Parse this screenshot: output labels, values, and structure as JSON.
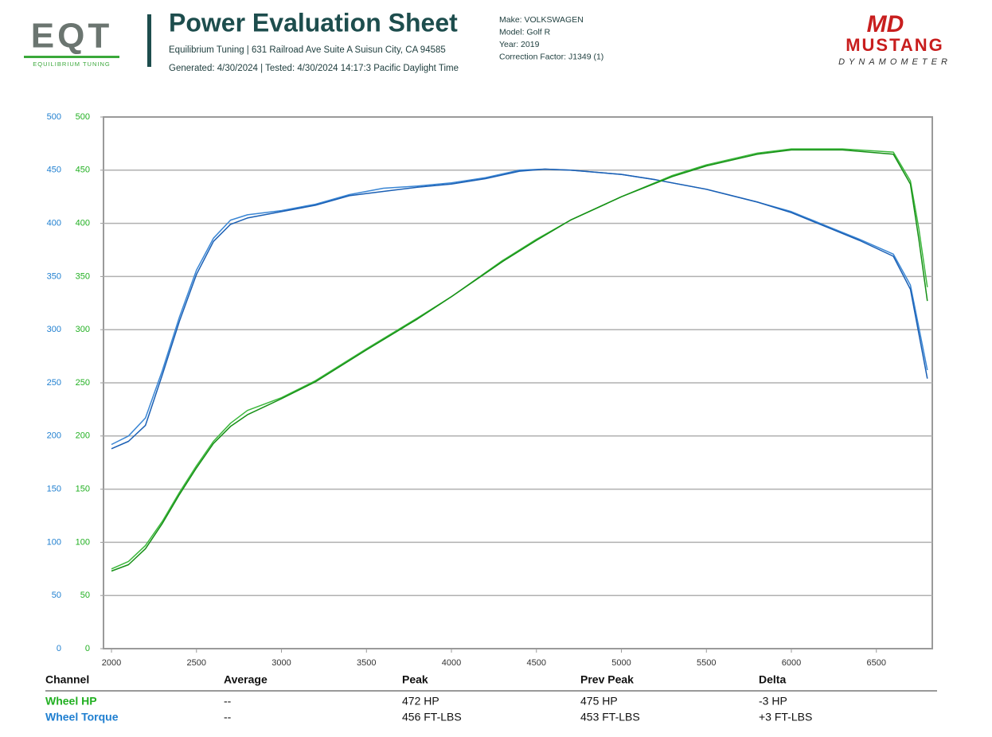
{
  "header": {
    "logo_left": "EQT",
    "logo_left_caption": "EQUILIBRIUM TUNING",
    "title": "Power Evaluation Sheet",
    "subtitle": "Equilibrium Tuning | 631 Railroad Ave Suite A Suisun City, CA 94585",
    "generated": "Generated: 4/30/2024 | Tested: 4/30/2024 14:17:3 Pacific Daylight Time",
    "details": [
      "Make: VOLKSWAGEN",
      "Model: Golf R",
      "Year: 2019",
      "Correction Factor: J1349 (1)"
    ],
    "logo_right_mark": "MD",
    "logo_right": "MUSTANG",
    "logo_right_caption": "DYNAMOMETER"
  },
  "chart_data": {
    "type": "line",
    "xlim": [
      1953,
      6829
    ],
    "xticks": [
      2000,
      2500,
      3000,
      3500,
      4000,
      4500,
      5000,
      5500,
      6000,
      6500
    ],
    "ylim": [
      0,
      500
    ],
    "yticks": [
      0,
      50,
      100,
      150,
      200,
      250,
      300,
      350,
      400,
      450,
      500
    ],
    "y2lim": [
      0,
      500
    ],
    "y2ticks": [
      0,
      50,
      100,
      150,
      200,
      250,
      300,
      350,
      400,
      450,
      500
    ],
    "ycolor": "#1f7fd0",
    "y2color": "#22b022",
    "grid": true,
    "series": [
      {
        "color": "#3a86d4",
        "x": [
          2000,
          2100,
          2200,
          2300,
          2400,
          2500,
          2600,
          2700,
          2800,
          3000,
          3200,
          3400,
          3600,
          3800,
          4000,
          4200,
          4400,
          4550,
          4700,
          5000,
          5200,
          5500,
          5800,
          6000,
          6200,
          6400,
          6600,
          6700,
          6800
        ],
        "values": [
          192,
          200,
          217,
          262,
          312,
          356,
          386,
          403,
          408,
          412,
          418,
          427,
          433,
          435,
          438,
          443,
          450,
          451,
          450,
          446,
          441,
          432,
          420,
          411,
          398,
          385,
          371,
          342,
          262
        ]
      },
      {
        "color": "#1a5fb4",
        "x": [
          2000,
          2100,
          2200,
          2300,
          2400,
          2500,
          2600,
          2700,
          2800,
          3000,
          3200,
          3400,
          3600,
          3800,
          4000,
          4200,
          4400,
          4550,
          4700,
          5000,
          5200,
          5500,
          5800,
          6000,
          6200,
          6400,
          6600,
          6700,
          6800
        ],
        "values": [
          188,
          195,
          210,
          258,
          308,
          352,
          383,
          399,
          405,
          411,
          417,
          426,
          430,
          434,
          437,
          442,
          449,
          451,
          450,
          446,
          441,
          432,
          420,
          410,
          397,
          384,
          369,
          338,
          254
        ]
      },
      {
        "color": "#3cb83c",
        "axis": "y2",
        "x": [
          2000,
          2100,
          2200,
          2300,
          2400,
          2500,
          2600,
          2700,
          2800,
          3000,
          3200,
          3500,
          3800,
          4000,
          4300,
          4500,
          4700,
          5000,
          5300,
          5500,
          5800,
          6000,
          6300,
          6600,
          6700,
          6750,
          6800
        ],
        "values": [
          75,
          82,
          97,
          120,
          147,
          172,
          195,
          212,
          224,
          236,
          252,
          282,
          311,
          331,
          365,
          385,
          403,
          425,
          445,
          455,
          466,
          470,
          470,
          467,
          440,
          395,
          340
        ]
      },
      {
        "color": "#169016",
        "axis": "y2",
        "x": [
          2000,
          2100,
          2200,
          2300,
          2400,
          2500,
          2600,
          2700,
          2800,
          3000,
          3200,
          3500,
          3800,
          4000,
          4300,
          4500,
          4700,
          5000,
          5300,
          5500,
          5800,
          6000,
          6300,
          6600,
          6700,
          6750,
          6800
        ],
        "values": [
          73,
          79,
          94,
          118,
          145,
          170,
          193,
          209,
          220,
          235,
          251,
          281,
          310,
          331,
          364,
          384,
          403,
          425,
          444,
          454,
          465,
          469,
          469,
          465,
          437,
          385,
          327
        ]
      }
    ]
  },
  "table": {
    "columns": [
      "Channel",
      "Average",
      "Peak",
      "Prev Peak",
      "Delta"
    ],
    "rows": [
      {
        "color": "#22b022",
        "cells": [
          "Wheel HP",
          "--",
          "472 HP",
          "475 HP",
          "-3 HP"
        ]
      },
      {
        "color": "#1f7fd0",
        "cells": [
          "Wheel Torque",
          "--",
          "456 FT-LBS",
          "453 FT-LBS",
          "+3 FT-LBS"
        ]
      }
    ]
  }
}
